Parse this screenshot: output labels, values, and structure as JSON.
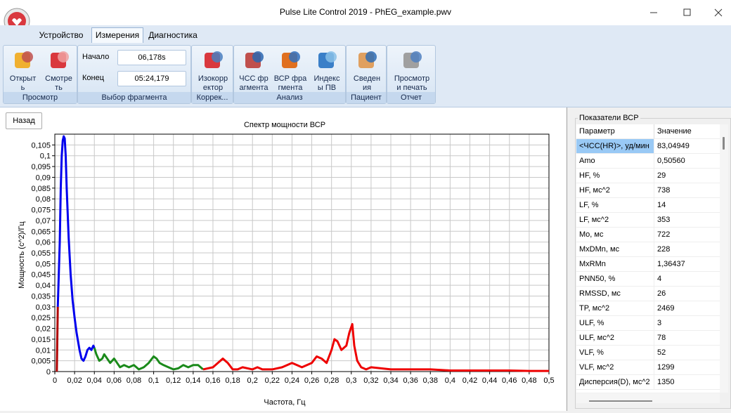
{
  "window": {
    "title": "Pulse Lite Control 2019 - PhEG_example.pwv"
  },
  "tabs": [
    "Устройство",
    "Измерения",
    "Диагностика"
  ],
  "ribbon": {
    "groups": [
      {
        "label": "Просмотр",
        "buttons": [
          {
            "lines": [
              "Открыт",
              "ь"
            ]
          },
          {
            "lines": [
              "Смотре",
              "ть"
            ]
          }
        ]
      },
      {
        "label": "Выбор фрагмента",
        "fields": [
          {
            "label": "Начало",
            "value": "06,178s"
          },
          {
            "label": "Конец",
            "value": "05:24,179"
          }
        ]
      },
      {
        "label": "Коррек...",
        "buttons": [
          {
            "lines": [
              "Изокорр",
              "ектор"
            ]
          }
        ]
      },
      {
        "label": "Анализ",
        "buttons": [
          {
            "lines": [
              "ЧСС фр",
              "агмента"
            ]
          },
          {
            "lines": [
              "ВСР фра",
              "гмента"
            ]
          },
          {
            "lines": [
              "Индекс",
              "ы ПВ"
            ]
          }
        ]
      },
      {
        "label": "Пациент",
        "buttons": [
          {
            "lines": [
              "Сведен",
              "ия"
            ]
          }
        ]
      },
      {
        "label": "Отчет",
        "buttons": [
          {
            "lines": [
              "Просмотр",
              "и печать"
            ]
          }
        ]
      }
    ]
  },
  "back_button": "Назад",
  "chart_data": {
    "type": "line",
    "title": "Спектр мощности ВСР",
    "x_label": "Частота, Гц",
    "y_label": "Мощность (c^2)/Гц",
    "grid": true,
    "xlim": [
      0,
      0.5
    ],
    "ylim": [
      0,
      0.11
    ],
    "xticks": [
      0,
      {
        "value": 0.02,
        "label": "0,02"
      },
      {
        "value": 0.04,
        "label": "0,04"
      },
      {
        "value": 0.06,
        "label": "0,06"
      },
      {
        "value": 0.08,
        "label": "0,08"
      },
      {
        "value": 0.1,
        "label": "0,1"
      },
      {
        "value": 0.12,
        "label": "0,12"
      },
      {
        "value": 0.14,
        "label": "0,14"
      },
      {
        "value": 0.16,
        "label": "0,16"
      },
      {
        "value": 0.18,
        "label": "0,18"
      },
      {
        "value": 0.2,
        "label": "0,2"
      },
      {
        "value": 0.22,
        "label": "0,22"
      },
      {
        "value": 0.24,
        "label": "0,24"
      },
      {
        "value": 0.26,
        "label": "0,26"
      },
      {
        "value": 0.28,
        "label": "0,28"
      },
      {
        "value": 0.3,
        "label": "0,3"
      },
      {
        "value": 0.32,
        "label": "0,32"
      },
      {
        "value": 0.34,
        "label": "0,34"
      },
      {
        "value": 0.36,
        "label": "0,36"
      },
      {
        "value": 0.38,
        "label": "0,38"
      },
      {
        "value": 0.4,
        "label": "0,4"
      },
      {
        "value": 0.42,
        "label": "0,42"
      },
      {
        "value": 0.44,
        "label": "0,44"
      },
      {
        "value": 0.46,
        "label": "0,46"
      },
      {
        "value": 0.48,
        "label": "0,48"
      },
      {
        "value": 0.5,
        "label": "0,5"
      }
    ],
    "yticks": [
      0,
      {
        "value": 0.005,
        "label": "0,005"
      },
      {
        "value": 0.01,
        "label": "0,01"
      },
      {
        "value": 0.015,
        "label": "0,015"
      },
      {
        "value": 0.02,
        "label": "0,02"
      },
      {
        "value": 0.025,
        "label": "0,025"
      },
      {
        "value": 0.03,
        "label": "0,03"
      },
      {
        "value": 0.035,
        "label": "0,035"
      },
      {
        "value": 0.04,
        "label": "0,04"
      },
      {
        "value": 0.045,
        "label": "0,045"
      },
      {
        "value": 0.05,
        "label": "0,05"
      },
      {
        "value": 0.055,
        "label": "0,055"
      },
      {
        "value": 0.06,
        "label": "0,06"
      },
      {
        "value": 0.065,
        "label": "0,065"
      },
      {
        "value": 0.07,
        "label": "0,07"
      },
      {
        "value": 0.075,
        "label": "0,075"
      },
      {
        "value": 0.08,
        "label": "0,08"
      },
      {
        "value": 0.085,
        "label": "0,085"
      },
      {
        "value": 0.09,
        "label": "0,09"
      },
      {
        "value": 0.095,
        "label": "0,095"
      },
      {
        "value": 0.1,
        "label": "0,1"
      },
      {
        "value": 0.105,
        "label": "0,105"
      }
    ],
    "series": [
      {
        "color": "#b00000",
        "x": [
          0.002,
          0.003
        ],
        "values": [
          0,
          0.03
        ]
      },
      {
        "color": "#0000ee",
        "x": [
          0.003,
          0.005,
          0.006,
          0.007,
          0.008,
          0.009,
          0.01,
          0.011,
          0.012,
          0.014,
          0.016,
          0.018,
          0.02,
          0.022,
          0.025,
          0.027,
          0.029,
          0.031,
          0.033,
          0.035,
          0.037,
          0.039,
          0.04
        ],
        "values": [
          0.03,
          0.06,
          0.085,
          0.1,
          0.107,
          0.109,
          0.108,
          0.1,
          0.085,
          0.062,
          0.045,
          0.033,
          0.025,
          0.018,
          0.01,
          0.006,
          0.005,
          0.007,
          0.01,
          0.011,
          0.01,
          0.012,
          0.011
        ]
      },
      {
        "color": "#1a8a1a",
        "x": [
          0.04,
          0.042,
          0.045,
          0.048,
          0.05,
          0.053,
          0.056,
          0.06,
          0.063,
          0.066,
          0.07,
          0.075,
          0.08,
          0.085,
          0.09,
          0.095,
          0.1,
          0.103,
          0.106,
          0.11,
          0.115,
          0.12,
          0.125,
          0.13,
          0.135,
          0.14,
          0.145,
          0.15
        ],
        "values": [
          0.011,
          0.008,
          0.005,
          0.006,
          0.008,
          0.006,
          0.004,
          0.006,
          0.004,
          0.002,
          0.003,
          0.002,
          0.003,
          0.001,
          0.002,
          0.004,
          0.007,
          0.006,
          0.004,
          0.003,
          0.002,
          0.001,
          0.0015,
          0.003,
          0.002,
          0.003,
          0.003,
          0.001
        ]
      },
      {
        "color": "#ee0000",
        "x": [
          0.15,
          0.16,
          0.165,
          0.17,
          0.175,
          0.18,
          0.185,
          0.19,
          0.2,
          0.205,
          0.21,
          0.22,
          0.23,
          0.24,
          0.245,
          0.25,
          0.26,
          0.265,
          0.27,
          0.275,
          0.28,
          0.283,
          0.286,
          0.29,
          0.295,
          0.298,
          0.301,
          0.303,
          0.306,
          0.31,
          0.315,
          0.32,
          0.33,
          0.34,
          0.35,
          0.36,
          0.38,
          0.4,
          0.42,
          0.44,
          0.46,
          0.48,
          0.5
        ],
        "values": [
          0.001,
          0.002,
          0.004,
          0.006,
          0.004,
          0.001,
          0.001,
          0.002,
          0.001,
          0.002,
          0.001,
          0.001,
          0.002,
          0.004,
          0.003,
          0.002,
          0.004,
          0.007,
          0.006,
          0.004,
          0.01,
          0.015,
          0.014,
          0.01,
          0.012,
          0.018,
          0.022,
          0.012,
          0.005,
          0.002,
          0.001,
          0.002,
          0.0015,
          0.001,
          0.001,
          0.001,
          0.001,
          0.0005,
          0.0005,
          0.0005,
          0.0005,
          0.0003,
          0.0003
        ]
      }
    ]
  },
  "panel": {
    "title": "Показатели ВСР",
    "columns": [
      "Параметр",
      "Значение"
    ],
    "rows": [
      [
        "<ЧСС(HR)>, уд/мин",
        "83,04949"
      ],
      [
        "Amo",
        "0,50560"
      ],
      [
        "HF, %",
        "29"
      ],
      [
        "HF, мс^2",
        "738"
      ],
      [
        "LF, %",
        "14"
      ],
      [
        "LF, мс^2",
        "353"
      ],
      [
        "Mo, мс",
        "722"
      ],
      [
        "MxDMn, мс",
        "228"
      ],
      [
        "MxRMn",
        "1,36437"
      ],
      [
        "PNN50, %",
        "4"
      ],
      [
        "RMSSD, мс",
        "26"
      ],
      [
        "TP, мс^2",
        "2469"
      ],
      [
        "ULF, %",
        "3"
      ],
      [
        "ULF, мс^2",
        "78"
      ],
      [
        "VLF, %",
        "52"
      ],
      [
        "VLF, мс^2",
        "1299"
      ],
      [
        "Дисперсия(D), мс^2",
        "1350"
      ]
    ]
  }
}
